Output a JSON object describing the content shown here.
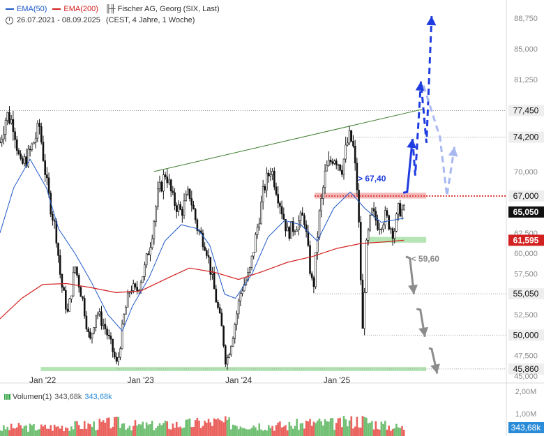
{
  "legend": {
    "ema50": "EMA(50)",
    "ema200": "EMA(200)",
    "title": "Fischer AG, Georg (SIX, Last)",
    "period": "26.07.2021 - 08.09.2025",
    "timezone": "(CEST, 4 Jahre, 1 Woche)"
  },
  "volume_legend": {
    "label": "Volumen(1)",
    "value1": "343,68k",
    "value2": "343,68k"
  },
  "colors": {
    "ema50": "#1e58c8",
    "ema200": "#d32020",
    "trend": "#3a7a2a",
    "bull": "#1e3ce0",
    "bear": "#8c8c8c",
    "resistance": "#f0a0a0",
    "support": "#a8e0a8"
  },
  "annotations": {
    "bull_trigger": "> 67,40",
    "bear_trigger": "< 59,60"
  },
  "chart_data": [
    {
      "type": "candlestick",
      "title": "Fischer AG, Georg (SIX, Last)",
      "ylim": [
        45000,
        90000
      ],
      "price_ticks": [
        "88,750",
        "85,000",
        "81,250",
        "77,450",
        "74,200",
        "70,000",
        "67,000",
        "65,050",
        "62,500",
        "61,595",
        "60,000",
        "57,500",
        "55,050",
        "52,500",
        "50,000",
        "47,500",
        "45,860",
        "45,000"
      ],
      "x_ticks": [
        {
          "label": "Jan '22",
          "date": "2022-01-01"
        },
        {
          "label": "Jan '23",
          "date": "2023-01-01"
        },
        {
          "label": "Jan '24",
          "date": "2024-01-01"
        },
        {
          "label": "Jan '25",
          "date": "2025-01-01"
        }
      ],
      "last_price": "65,050",
      "ema200_last": "61,595",
      "key_levels": [
        77450,
        74200,
        67000,
        55050,
        50000,
        45860
      ],
      "price_path": [
        [
          "2021-07-26",
          73600
        ],
        [
          "2021-08-20",
          77000
        ],
        [
          "2021-09-15",
          75800
        ],
        [
          "2021-10-10",
          70500
        ],
        [
          "2021-11-10",
          72000
        ],
        [
          "2021-12-20",
          75500
        ],
        [
          "2022-01-20",
          67500
        ],
        [
          "2022-02-20",
          62500
        ],
        [
          "2022-03-10",
          56500
        ],
        [
          "2022-04-05",
          52500
        ],
        [
          "2022-05-01",
          58500
        ],
        [
          "2022-06-01",
          54000
        ],
        [
          "2022-06-25",
          49000
        ],
        [
          "2022-07-20",
          53000
        ],
        [
          "2022-08-20",
          51000
        ],
        [
          "2022-09-15",
          48500
        ],
        [
          "2022-10-05",
          46200
        ],
        [
          "2022-11-01",
          52500
        ],
        [
          "2022-11-25",
          56000
        ],
        [
          "2022-12-15",
          55200
        ],
        [
          "2023-01-15",
          58000
        ],
        [
          "2023-02-10",
          62000
        ],
        [
          "2023-03-05",
          67000
        ],
        [
          "2023-04-05",
          70000
        ],
        [
          "2023-05-01",
          66500
        ],
        [
          "2023-06-01",
          65000
        ],
        [
          "2023-07-01",
          67500
        ],
        [
          "2023-08-01",
          63000
        ],
        [
          "2023-09-01",
          61000
        ],
        [
          "2023-10-05",
          55000
        ],
        [
          "2023-11-01",
          50500
        ],
        [
          "2023-11-15",
          46500
        ],
        [
          "2023-12-10",
          50000
        ],
        [
          "2024-01-10",
          55500
        ],
        [
          "2024-02-10",
          57500
        ],
        [
          "2024-03-10",
          63000
        ],
        [
          "2024-04-05",
          68000
        ],
        [
          "2024-05-01",
          70500
        ],
        [
          "2024-06-01",
          66500
        ],
        [
          "2024-07-01",
          62500
        ],
        [
          "2024-08-01",
          63500
        ],
        [
          "2024-09-01",
          64500
        ],
        [
          "2024-09-25",
          57500
        ],
        [
          "2024-10-05",
          55500
        ],
        [
          "2024-10-25",
          64000
        ],
        [
          "2024-11-20",
          70000
        ],
        [
          "2024-12-20",
          72000
        ],
        [
          "2025-01-20",
          70500
        ],
        [
          "2025-02-15",
          74200
        ],
        [
          "2025-03-01",
          73500
        ],
        [
          "2025-03-20",
          67000
        ],
        [
          "2025-04-07",
          50500
        ],
        [
          "2025-04-20",
          60500
        ],
        [
          "2025-05-10",
          65000
        ],
        [
          "2025-06-05",
          63500
        ],
        [
          "2025-07-01",
          64500
        ],
        [
          "2025-08-01",
          62500
        ],
        [
          "2025-08-20",
          65500
        ],
        [
          "2025-09-08",
          65050
        ]
      ],
      "ema50": [
        [
          "2021-07-26",
          62500
        ],
        [
          "2021-09-15",
          68000
        ],
        [
          "2021-11-15",
          71500
        ],
        [
          "2022-01-15",
          68000
        ],
        [
          "2022-03-01",
          63000
        ],
        [
          "2022-05-01",
          60000
        ],
        [
          "2022-07-01",
          56500
        ],
        [
          "2022-09-01",
          52500
        ],
        [
          "2022-10-25",
          50500
        ],
        [
          "2022-12-01",
          53500
        ],
        [
          "2023-02-01",
          57000
        ],
        [
          "2023-04-01",
          61500
        ],
        [
          "2023-06-01",
          63500
        ],
        [
          "2023-08-01",
          63000
        ],
        [
          "2023-09-15",
          61000
        ],
        [
          "2023-11-10",
          55000
        ],
        [
          "2023-12-20",
          54500
        ],
        [
          "2024-02-20",
          57500
        ],
        [
          "2024-04-20",
          62000
        ],
        [
          "2024-06-20",
          64000
        ],
        [
          "2024-08-20",
          63500
        ],
        [
          "2024-10-20",
          61500
        ],
        [
          "2024-12-20",
          65500
        ],
        [
          "2025-02-20",
          67500
        ],
        [
          "2025-04-15",
          65500
        ],
        [
          "2025-06-15",
          63800
        ],
        [
          "2025-09-08",
          64300
        ]
      ],
      "ema200": [
        [
          "2021-07-26",
          52000
        ],
        [
          "2021-10-15",
          54500
        ],
        [
          "2022-01-01",
          56200
        ],
        [
          "2022-04-01",
          56300
        ],
        [
          "2022-07-01",
          55800
        ],
        [
          "2022-10-01",
          55200
        ],
        [
          "2023-01-01",
          55400
        ],
        [
          "2023-04-01",
          56800
        ],
        [
          "2023-07-01",
          58200
        ],
        [
          "2023-10-01",
          57700
        ],
        [
          "2024-01-01",
          56800
        ],
        [
          "2024-04-01",
          57800
        ],
        [
          "2024-07-01",
          58900
        ],
        [
          "2024-10-01",
          59600
        ],
        [
          "2025-01-01",
          60600
        ],
        [
          "2025-04-01",
          61200
        ],
        [
          "2025-07-01",
          61400
        ],
        [
          "2025-09-08",
          61595
        ]
      ],
      "trendline": [
        [
          "2023-02-20",
          70000
        ],
        [
          "2025-11-15",
          77600
        ]
      ],
      "resistance_zone": {
        "from": "2024-10-10",
        "to": "2025-11-30",
        "low": 66700,
        "high": 67400,
        "level": 67000
      },
      "support_zone": {
        "from": "2025-04-25",
        "to": "2025-11-30",
        "low": 61300,
        "high": 62000
      },
      "bottom_zone": {
        "from": "2021-12-25",
        "to": "2025-11-30",
        "low": 45600,
        "high": 46100
      },
      "bull_scenario": [
        [
          "2025-09-05",
          67400
        ],
        [
          "2025-09-20",
          67500
        ],
        [
          "2025-10-10",
          74000
        ],
        [
          "2025-10-20",
          69500
        ],
        [
          "2025-11-10",
          81000
        ],
        [
          "2025-12-01",
          73500
        ],
        [
          "2025-12-20",
          89000
        ]
      ],
      "bull_alt": [
        [
          "2025-11-20",
          80500
        ],
        [
          "2026-01-20",
          74200
        ],
        [
          "2026-02-15",
          67000
        ],
        [
          "2026-03-15",
          73000
        ]
      ],
      "bear_scenario": [
        [
          "2025-09-15",
          59600
        ],
        [
          "2025-09-30",
          59400
        ],
        [
          "2025-10-15",
          55000
        ],
        [
          "2025-10-25",
          53200
        ],
        [
          "2025-11-08",
          53100
        ],
        [
          "2025-11-25",
          49800
        ],
        [
          "2025-12-10",
          48400
        ],
        [
          "2025-12-20",
          48300
        ],
        [
          "2026-01-10",
          45300
        ]
      ],
      "series": [
        {
          "name": "EMA(50)"
        },
        {
          "name": "EMA(200)"
        }
      ]
    },
    {
      "type": "bar",
      "title": "Volumen(1)",
      "y_ticks": [
        "2,00M",
        "1,00M"
      ],
      "last_value": "343,68k",
      "ylim": [
        0,
        2000000
      ],
      "volume_path": [
        [
          "2021-07-26",
          300000
        ],
        [
          "2021-10-01",
          380000
        ],
        [
          "2022-01-01",
          360000
        ],
        [
          "2022-04-01",
          420000
        ],
        [
          "2022-07-01",
          470000
        ],
        [
          "2022-10-01",
          560000
        ],
        [
          "2023-01-01",
          430000
        ],
        [
          "2023-04-01",
          460000
        ],
        [
          "2023-07-01",
          510000
        ],
        [
          "2023-10-01",
          600000
        ],
        [
          "2024-01-01",
          520000
        ],
        [
          "2024-04-01",
          470000
        ],
        [
          "2024-07-01",
          430000
        ],
        [
          "2024-10-01",
          560000
        ],
        [
          "2025-01-01",
          520000
        ],
        [
          "2025-04-01",
          680000
        ],
        [
          "2025-07-01",
          440000
        ],
        [
          "2025-09-08",
          343680
        ]
      ]
    }
  ]
}
